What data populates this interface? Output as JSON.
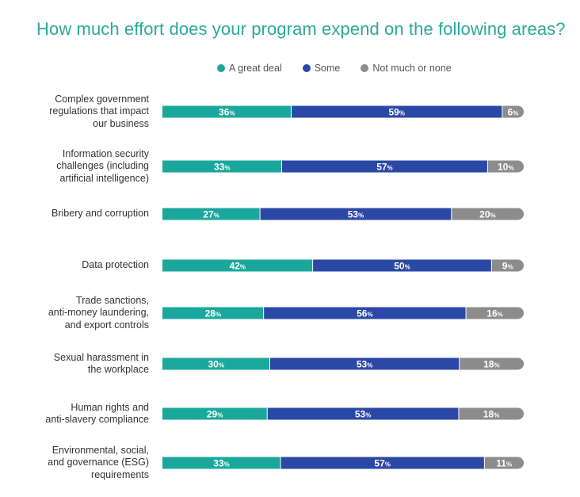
{
  "chart_data": {
    "type": "bar",
    "orientation": "horizontal-stacked-100",
    "title": "How much effort does your program expend on the following areas?",
    "legend_position": "top",
    "series": [
      {
        "name": "A great deal",
        "color": "#1ba89c"
      },
      {
        "name": "Some",
        "color": "#2b48a6"
      },
      {
        "name": "Not much or none",
        "color": "#8c8c8c"
      }
    ],
    "categories": [
      {
        "label": "Complex government regulations that impact our business",
        "lines": [
          "Complex government",
          "regulations that impact",
          "our business"
        ],
        "values": [
          36,
          59,
          6
        ]
      },
      {
        "label": "Information security challenges (including artificial intelligence)",
        "lines": [
          "Information security",
          "challenges (including",
          "artificial intelligence)"
        ],
        "values": [
          33,
          57,
          10
        ]
      },
      {
        "label": "Bribery and corruption",
        "lines": [
          "Bribery and corruption"
        ],
        "values": [
          27,
          53,
          20
        ]
      },
      {
        "label": "Data protection",
        "lines": [
          "Data protection"
        ],
        "values": [
          42,
          50,
          9
        ]
      },
      {
        "label": "Trade sanctions, anti-money laundering, and export controls",
        "lines": [
          "Trade sanctions,",
          "anti-money laundering,",
          "and export controls"
        ],
        "values": [
          28,
          56,
          16
        ]
      },
      {
        "label": "Sexual harassment in the workplace",
        "lines": [
          "Sexual harassment in",
          "the workplace"
        ],
        "values": [
          30,
          53,
          18
        ]
      },
      {
        "label": "Human rights and anti-slavery compliance",
        "lines": [
          "Human rights and",
          "anti-slavery compliance"
        ],
        "values": [
          29,
          53,
          18
        ]
      },
      {
        "label": "Environmental, social, and governance (ESG) requirements",
        "lines": [
          "Environmental, social,",
          "and governance (ESG)",
          "requirements"
        ],
        "values": [
          33,
          57,
          11
        ]
      }
    ],
    "value_suffix": "%"
  }
}
